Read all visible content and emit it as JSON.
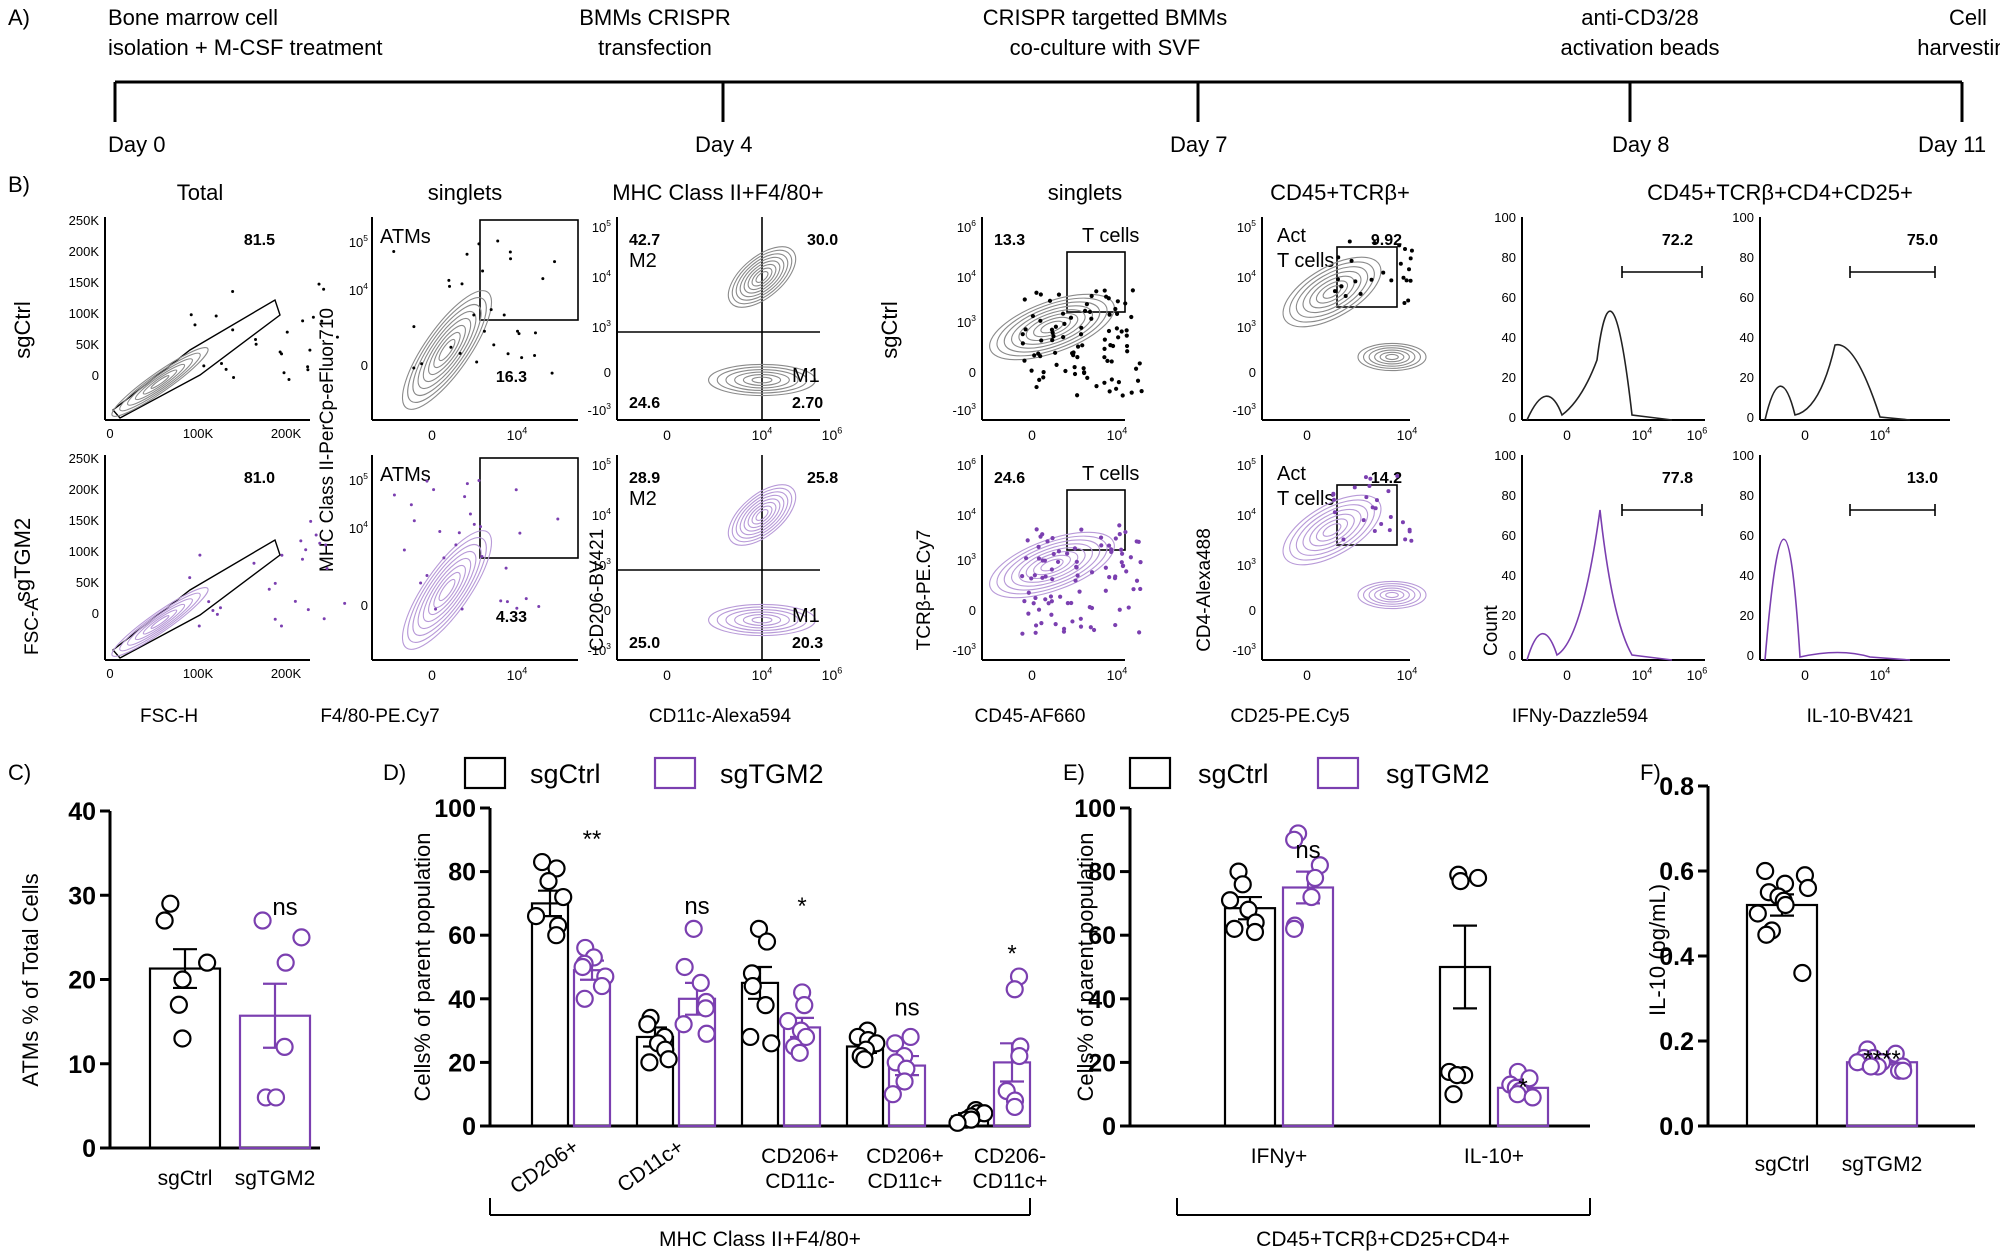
{
  "colors": {
    "ctrl": "#000000",
    "tgm2": "#7b3fb0",
    "ctrlContour": "#8a8a8a",
    "tgm2Contour": "#b89ad8"
  },
  "panelA": {
    "label": "A)",
    "events": [
      {
        "top1": "Bone marrow cell",
        "top2": "isolation + M-CSF treatment",
        "day": "Day 0"
      },
      {
        "top1": "BMMs CRISPR",
        "top2": "transfection",
        "day": "Day 4"
      },
      {
        "top1": "CRISPR targetted BMMs",
        "top2": "co-culture with SVF",
        "day": "Day 7"
      },
      {
        "top1": "anti-CD3/28",
        "top2": "activation beads",
        "day": "Day 8"
      },
      {
        "top1": "Cell",
        "top2": "harvesting",
        "day": "Day 11"
      }
    ]
  },
  "panelB": {
    "label": "B)",
    "rows": [
      "sgCtrl",
      "sgTGM2"
    ],
    "titles": [
      "Total",
      "singlets",
      "MHC Class II+F4/80+",
      "singlets",
      "CD45+TCRβ+",
      "CD45+TCRβ+CD4+CD25+"
    ],
    "xlabels": [
      "FSC-H",
      "F4/80-PE.Cy7",
      "CD11c-Alexa594",
      "CD45-AF660",
      "CD25-PE.Cy5",
      "IFNy-Dazzle594",
      "IL-10-BV421"
    ],
    "ylabels": [
      "FSC-A",
      "MHC Class II-PerCp-eFluor710",
      "CD206-BV421",
      "TCRβ-PE.Cy7",
      "CD4-Alexa488",
      "Count"
    ],
    "fscTicksY": [
      "250K",
      "200K",
      "150K",
      "100K",
      "50K",
      "0"
    ],
    "fscTicksX": [
      "0",
      "100K",
      "200K"
    ],
    "gates": {
      "total": [
        "81.5",
        "81.0"
      ],
      "atmLabel": "ATMs",
      "atm": [
        "16.3",
        "4.33"
      ],
      "quadTL": [
        "42.7",
        "28.9"
      ],
      "quadTR": [
        "30.0",
        "25.8"
      ],
      "quadBL": [
        "24.6",
        "25.0"
      ],
      "quadBR": [
        "2.70",
        "20.3"
      ],
      "m1": "M1",
      "m2": "M2",
      "tcellLabel": "T cells",
      "tcell": [
        "13.3",
        "24.6"
      ],
      "actLabel1": "Act",
      "actLabel2": "T cells",
      "act": [
        "9.92",
        "14.2"
      ],
      "ifng": [
        "72.2",
        "77.8"
      ],
      "il10": [
        "75.0",
        "13.0"
      ]
    },
    "histTicks": [
      "100",
      "80",
      "60",
      "40",
      "20",
      "0"
    ]
  },
  "panelC": {
    "label": "C)",
    "chart_data": {
      "type": "bar",
      "ylabel": "ATMs % of Total Cells",
      "ylim": [
        0,
        40
      ],
      "yticks": [
        "0",
        "10",
        "20",
        "30",
        "40"
      ],
      "categories": [
        "sgCtrl",
        "sgTGM2"
      ],
      "means": [
        21.3,
        15.7
      ],
      "sem": [
        2.3,
        3.8
      ],
      "points": [
        [
          29,
          27,
          22,
          20,
          17,
          13
        ],
        [
          27,
          25,
          22,
          12,
          6,
          6
        ]
      ],
      "annotations": [
        "",
        "ns"
      ]
    }
  },
  "panelD": {
    "label": "D)",
    "legend": [
      "sgCtrl",
      "sgTGM2"
    ],
    "bracket": "MHC Class II+F4/80+",
    "chart_data": {
      "type": "bar",
      "ylabel": "Cells% of parent population",
      "ylim": [
        0,
        100
      ],
      "yticks": [
        "0",
        "20",
        "40",
        "60",
        "80",
        "100"
      ],
      "categories": [
        [
          "CD206+"
        ],
        [
          "CD11c+"
        ],
        [
          "CD206+",
          "CD11c-"
        ],
        [
          "CD206+",
          "CD11c+"
        ],
        [
          "CD206-",
          "CD11c+"
        ]
      ],
      "series": [
        {
          "name": "sgCtrl",
          "means": [
            70,
            28,
            45,
            25,
            3
          ],
          "sem": [
            4,
            3,
            5,
            2,
            1
          ],
          "points": [
            [
              83,
              81,
              77,
              72,
              66,
              63,
              60
            ],
            [
              34,
              32,
              28,
              26,
              24,
              21,
              20
            ],
            [
              62,
              58,
              48,
              44,
              38,
              28,
              26
            ],
            [
              30,
              28,
              27,
              26,
              24,
              22,
              21
            ],
            [
              5,
              4,
              4,
              3,
              2,
              2,
              1
            ]
          ]
        },
        {
          "name": "sgTGM2",
          "means": [
            49,
            40,
            31,
            19,
            20
          ],
          "sem": [
            3,
            5,
            3,
            3,
            6
          ],
          "points": [
            [
              56,
              53,
              51,
              50,
              47,
              44,
              40
            ],
            [
              62,
              50,
              45,
              39,
              37,
              32,
              29
            ],
            [
              42,
              38,
              33,
              30,
              28,
              25,
              23
            ],
            [
              28,
              26,
              22,
              20,
              18,
              14,
              10
            ],
            [
              47,
              43,
              25,
              22,
              11,
              8,
              6
            ]
          ]
        }
      ],
      "annotations": [
        "**",
        "ns",
        "*",
        "ns",
        "*"
      ]
    }
  },
  "panelE": {
    "label": "E)",
    "legend": [
      "sgCtrl",
      "sgTGM2"
    ],
    "bracket": "CD45+TCRβ+CD25+CD4+",
    "chart_data": {
      "type": "bar",
      "ylabel": "Cells% of parent population",
      "ylim": [
        0,
        100
      ],
      "yticks": [
        "0",
        "20",
        "40",
        "60",
        "80",
        "100"
      ],
      "categories": [
        "IFNy+",
        "IL-10+"
      ],
      "series": [
        {
          "name": "sgCtrl",
          "means": [
            68.5,
            50
          ],
          "sem": [
            3.5,
            13
          ],
          "points": [
            [
              80,
              76,
              71,
              68,
              64,
              62,
              61
            ],
            [
              79,
              78,
              77,
              17,
              16,
              16,
              10
            ]
          ]
        },
        {
          "name": "sgTGM2",
          "means": [
            75,
            12
          ],
          "sem": [
            5,
            2
          ],
          "points": [
            [
              92,
              90,
              82,
              78,
              72,
              63,
              62
            ],
            [
              17,
              15,
              13,
              12,
              11,
              10,
              9
            ]
          ]
        }
      ],
      "annotations": [
        "ns",
        "*"
      ]
    }
  },
  "panelF": {
    "label": "F)",
    "chart_data": {
      "type": "bar",
      "ylabel": "IL-10 (pg/mL)",
      "ylim": [
        0,
        0.8
      ],
      "yticks": [
        "0.0",
        "0.2",
        "0.4",
        "0.6",
        "0.8"
      ],
      "categories": [
        "sgCtrl",
        "sgTGM2"
      ],
      "means": [
        0.52,
        0.15
      ],
      "sem": [
        0.025,
        0.005
      ],
      "points": [
        [
          0.6,
          0.59,
          0.57,
          0.56,
          0.55,
          0.54,
          0.53,
          0.52,
          0.5,
          0.46,
          0.45,
          0.36
        ],
        [
          0.18,
          0.17,
          0.16,
          0.16,
          0.15,
          0.15,
          0.15,
          0.14,
          0.14,
          0.14,
          0.13,
          0.13
        ]
      ],
      "annotations": [
        "",
        "****"
      ]
    }
  }
}
